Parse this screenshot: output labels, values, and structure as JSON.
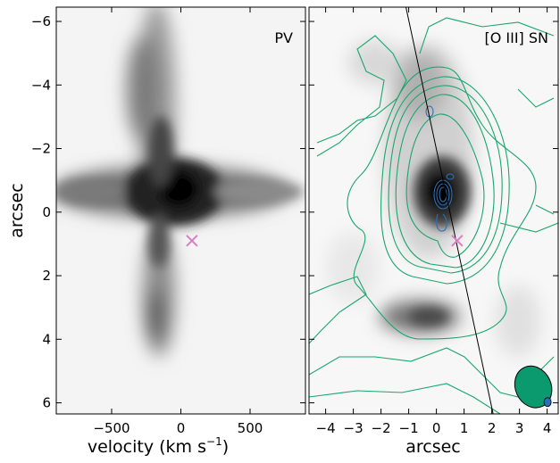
{
  "chart_data": [
    {
      "type": "heatmap",
      "panel_label": "PV",
      "xlabel": "velocity (km s$^{-1}$)",
      "xlabel_main": "velocity (km s",
      "xlabel_sup": "−1",
      "xlabel_tail": ")",
      "ylabel": "arcsec",
      "xlim": [
        -900,
        900
      ],
      "ylim": [
        6.35,
        -6.45
      ],
      "x_ticks": [
        -500,
        0,
        500
      ],
      "x_tick_labels": [
        "−500",
        "0",
        "500"
      ],
      "y_ticks": [
        -6,
        -4,
        -2,
        0,
        2,
        4,
        6
      ],
      "y_tick_labels": [
        "−6",
        "−4",
        "−2",
        "0",
        "2",
        "4",
        "6"
      ],
      "colormap": "gray_r",
      "marker": {
        "symbol": "x",
        "x": 80,
        "y": 0.9,
        "color": "#d77fc2"
      }
    },
    {
      "type": "heatmap",
      "panel_label": "[O III] SN",
      "xlabel": "arcsec",
      "xlim": [
        -4.6,
        4.4
      ],
      "ylim": [
        6.35,
        -6.45
      ],
      "x_ticks": [
        -4,
        -3,
        -2,
        -1,
        0,
        1,
        2,
        3,
        4
      ],
      "x_tick_labels": [
        "−4",
        "−3",
        "−2",
        "−1",
        "0",
        "1",
        "2",
        "3",
        "4"
      ],
      "colormap": "gray_r",
      "contour_colors": {
        "oiii": "#1aa56e",
        "blue": "#2c6fb6"
      },
      "slit_line": [
        [
          -1.1,
          -6.45
        ],
        [
          2.05,
          6.35
        ]
      ],
      "marker": {
        "symbol": "x",
        "x": 0.75,
        "y": 0.9,
        "color": "#d77fc2"
      },
      "beam": {
        "x": 3.5,
        "y": 5.5,
        "fill": "#0b9a6e"
      }
    }
  ]
}
